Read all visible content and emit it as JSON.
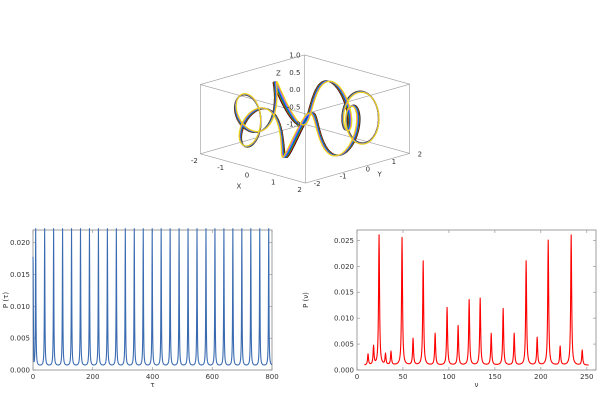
{
  "chart_data": [
    {
      "type": "line3d",
      "xlabel": "X",
      "ylabel": "Y",
      "zlabel": "Z",
      "x_ticks": [
        "-2",
        "-1",
        "0",
        "1",
        "2"
      ],
      "y_ticks": [
        "-2",
        "-1",
        "0",
        "1",
        "2"
      ],
      "z_ticks": [
        "1.0",
        "0.5",
        "0.0",
        "-0.5",
        "-1.0"
      ],
      "xlim": [
        -2,
        2
      ],
      "ylim": [
        -2,
        2
      ],
      "zlim": [
        -1,
        1
      ],
      "torus_major_radius": 1.6,
      "torus_minor_radius": 0.4,
      "loop_count": 7,
      "series_colors": [
        "#000000",
        "#ff0000",
        "#00e600",
        "#0000ff",
        "#00e6e6",
        "#ff00ff",
        "#e6e600"
      ]
    },
    {
      "type": "line",
      "xlabel": "τ",
      "ylabel": "P (τ)",
      "xlim": [
        0,
        800
      ],
      "ylim": [
        0,
        0.022
      ],
      "x_ticks": [
        "0",
        "200",
        "400",
        "600",
        "800"
      ],
      "y_ticks": [
        "0.000",
        "0.005",
        "0.010",
        "0.015",
        "0.020"
      ],
      "x_tick_values": [
        0,
        200,
        400,
        600,
        800
      ],
      "y_tick_values": [
        0,
        0.005,
        0.01,
        0.015,
        0.02
      ],
      "peak_period": 30,
      "peak_first_x": 9,
      "peak_height": 0.0222,
      "baseline": 0.0006,
      "initial_value": 0.0178,
      "color": "#3a6bb1"
    },
    {
      "type": "line",
      "xlabel": "ν",
      "ylabel": "P (ν)",
      "xlim": [
        0,
        260
      ],
      "ylim": [
        0,
        0.027
      ],
      "x_ticks": [
        "0",
        "50",
        "100",
        "150",
        "200",
        "250"
      ],
      "y_ticks": [
        "0.000",
        "0.005",
        "0.010",
        "0.015",
        "0.020",
        "0.025"
      ],
      "x_tick_values": [
        0,
        50,
        100,
        150,
        200,
        250
      ],
      "y_tick_values": [
        0,
        0.005,
        0.01,
        0.015,
        0.02,
        0.025
      ],
      "baseline": 0.0009,
      "peaks": [
        [
          12,
          0.003
        ],
        [
          18,
          0.0045
        ],
        [
          24,
          0.026
        ],
        [
          31,
          0.003
        ],
        [
          37,
          0.0035
        ],
        [
          49,
          0.0255
        ],
        [
          61,
          0.006
        ],
        [
          72,
          0.021
        ],
        [
          85,
          0.007
        ],
        [
          98,
          0.012
        ],
        [
          110,
          0.0085
        ],
        [
          122,
          0.0135
        ],
        [
          134,
          0.0138
        ],
        [
          146,
          0.007
        ],
        [
          159,
          0.0118
        ],
        [
          171,
          0.007
        ],
        [
          184,
          0.021
        ],
        [
          196,
          0.0062
        ],
        [
          208,
          0.025
        ],
        [
          221,
          0.0045
        ],
        [
          233,
          0.026
        ],
        [
          245,
          0.0038
        ]
      ],
      "color": "#ff0000"
    }
  ]
}
